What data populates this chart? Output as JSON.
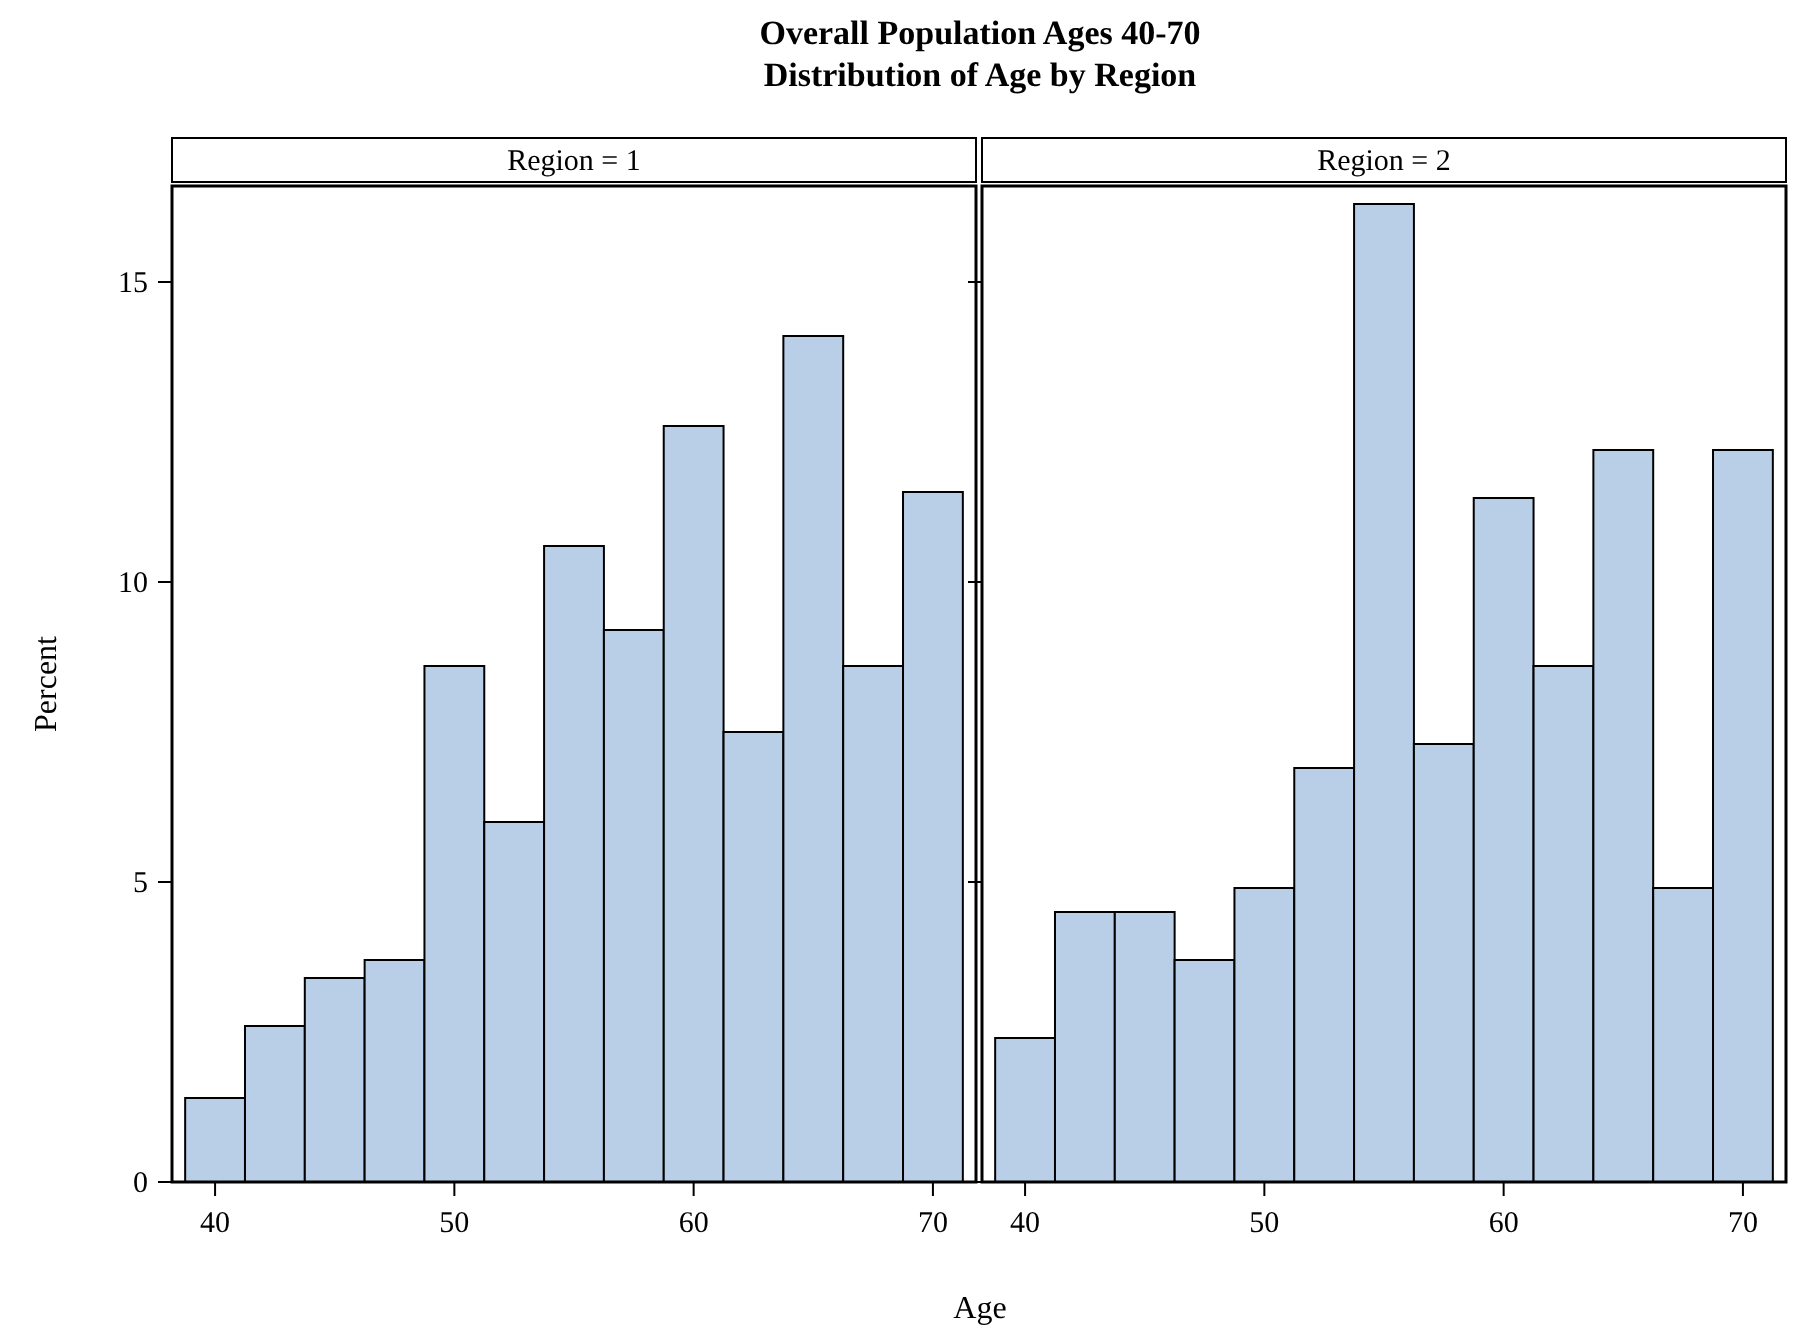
{
  "chart_data": [
    {
      "type": "histogram",
      "title": "Region = 1",
      "annotations": [
        "Overall Population Ages 40-70",
        "Distribution of Age by Region"
      ],
      "xlabel": "Age",
      "ylabel": "Percent",
      "color": "#b9cfe7",
      "bins": [
        38.75,
        41.25,
        43.75,
        46.25,
        48.75,
        51.25,
        53.75,
        56.25,
        58.75,
        61.25,
        63.75,
        66.25,
        68.75,
        71.25
      ],
      "values": [
        1.4,
        2.6,
        3.4,
        3.7,
        8.6,
        6.0,
        10.6,
        9.2,
        12.6,
        7.5,
        14.1,
        8.6,
        11.5
      ],
      "xlim": [
        38.2,
        71.8
      ],
      "xticks": [
        40,
        50,
        60,
        70
      ],
      "ylim": [
        0,
        16.6
      ],
      "yticks": [
        0,
        5,
        10,
        15
      ],
      "grid": false
    },
    {
      "type": "histogram",
      "title": "Region = 2",
      "color": "#b9cfe7",
      "bins": [
        38.75,
        41.25,
        43.75,
        46.25,
        48.75,
        51.25,
        53.75,
        56.25,
        58.75,
        61.25,
        63.75,
        66.25,
        68.75,
        71.25
      ],
      "values": [
        2.4,
        4.5,
        4.5,
        3.7,
        4.9,
        6.9,
        16.3,
        7.3,
        11.4,
        8.6,
        12.2,
        4.9,
        12.2
      ],
      "xlim": [
        38.2,
        71.8
      ],
      "xticks": [
        40,
        50,
        60,
        70
      ],
      "ylim": [
        0,
        16.6
      ],
      "yticks": [
        0,
        5,
        10,
        15
      ],
      "tick_labels": "x",
      "grid": false
    }
  ]
}
